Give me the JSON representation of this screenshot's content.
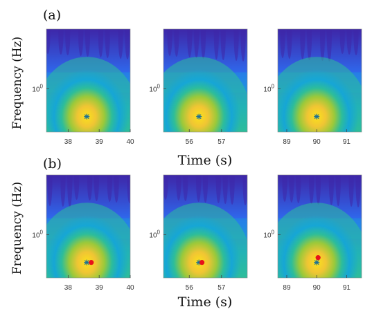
{
  "chart_data": {
    "type": "heatmap",
    "figure_labels": [
      "(a)",
      "(b)"
    ],
    "xlabel": "Time (s)",
    "ylabel": "Frequency (Hz)",
    "ytick_label": {
      "base": "10",
      "exp": "0"
    },
    "colormap": [
      "#3e26a8",
      "#2e6cf0",
      "#16a6d6",
      "#2dbd9a",
      "#9bc93a",
      "#f0c534",
      "#fbe11c"
    ],
    "panels": [
      {
        "row": "a",
        "xticks": [
          "38",
          "39",
          "40"
        ],
        "x_range": [
          37.3,
          40.0
        ],
        "peak_time": 38.6,
        "markers": [
          {
            "type": "star",
            "x": 38.6
          }
        ]
      },
      {
        "row": "a",
        "xticks": [
          "56",
          "57"
        ],
        "x_range": [
          55.2,
          57.8
        ],
        "peak_time": 56.3,
        "markers": [
          {
            "type": "star",
            "x": 56.3
          }
        ]
      },
      {
        "row": "a",
        "xticks": [
          "89",
          "90",
          "91"
        ],
        "x_range": [
          88.7,
          91.5
        ],
        "peak_time": 90.0,
        "markers": [
          {
            "type": "star",
            "x": 90.0
          }
        ]
      },
      {
        "row": "b",
        "xticks": [
          "38",
          "39",
          "40"
        ],
        "x_range": [
          37.3,
          40.0
        ],
        "peak_time": 38.6,
        "markers": [
          {
            "type": "star",
            "x": 38.6
          },
          {
            "type": "dot",
            "x": 38.7
          }
        ]
      },
      {
        "row": "b",
        "xticks": [
          "56",
          "57"
        ],
        "x_range": [
          55.2,
          57.8
        ],
        "peak_time": 56.3,
        "markers": [
          {
            "type": "star",
            "x": 56.3
          },
          {
            "type": "dot",
            "x": 56.35
          }
        ]
      },
      {
        "row": "b",
        "xticks": [
          "89",
          "90",
          "91"
        ],
        "x_range": [
          88.7,
          91.5
        ],
        "peak_time": 90.0,
        "markers": [
          {
            "type": "star",
            "x": 90.0
          },
          {
            "type": "dot",
            "x": 90.0
          }
        ]
      }
    ],
    "marker_colors": {
      "star": "#1a6f96",
      "dot": "#e8101a"
    }
  }
}
